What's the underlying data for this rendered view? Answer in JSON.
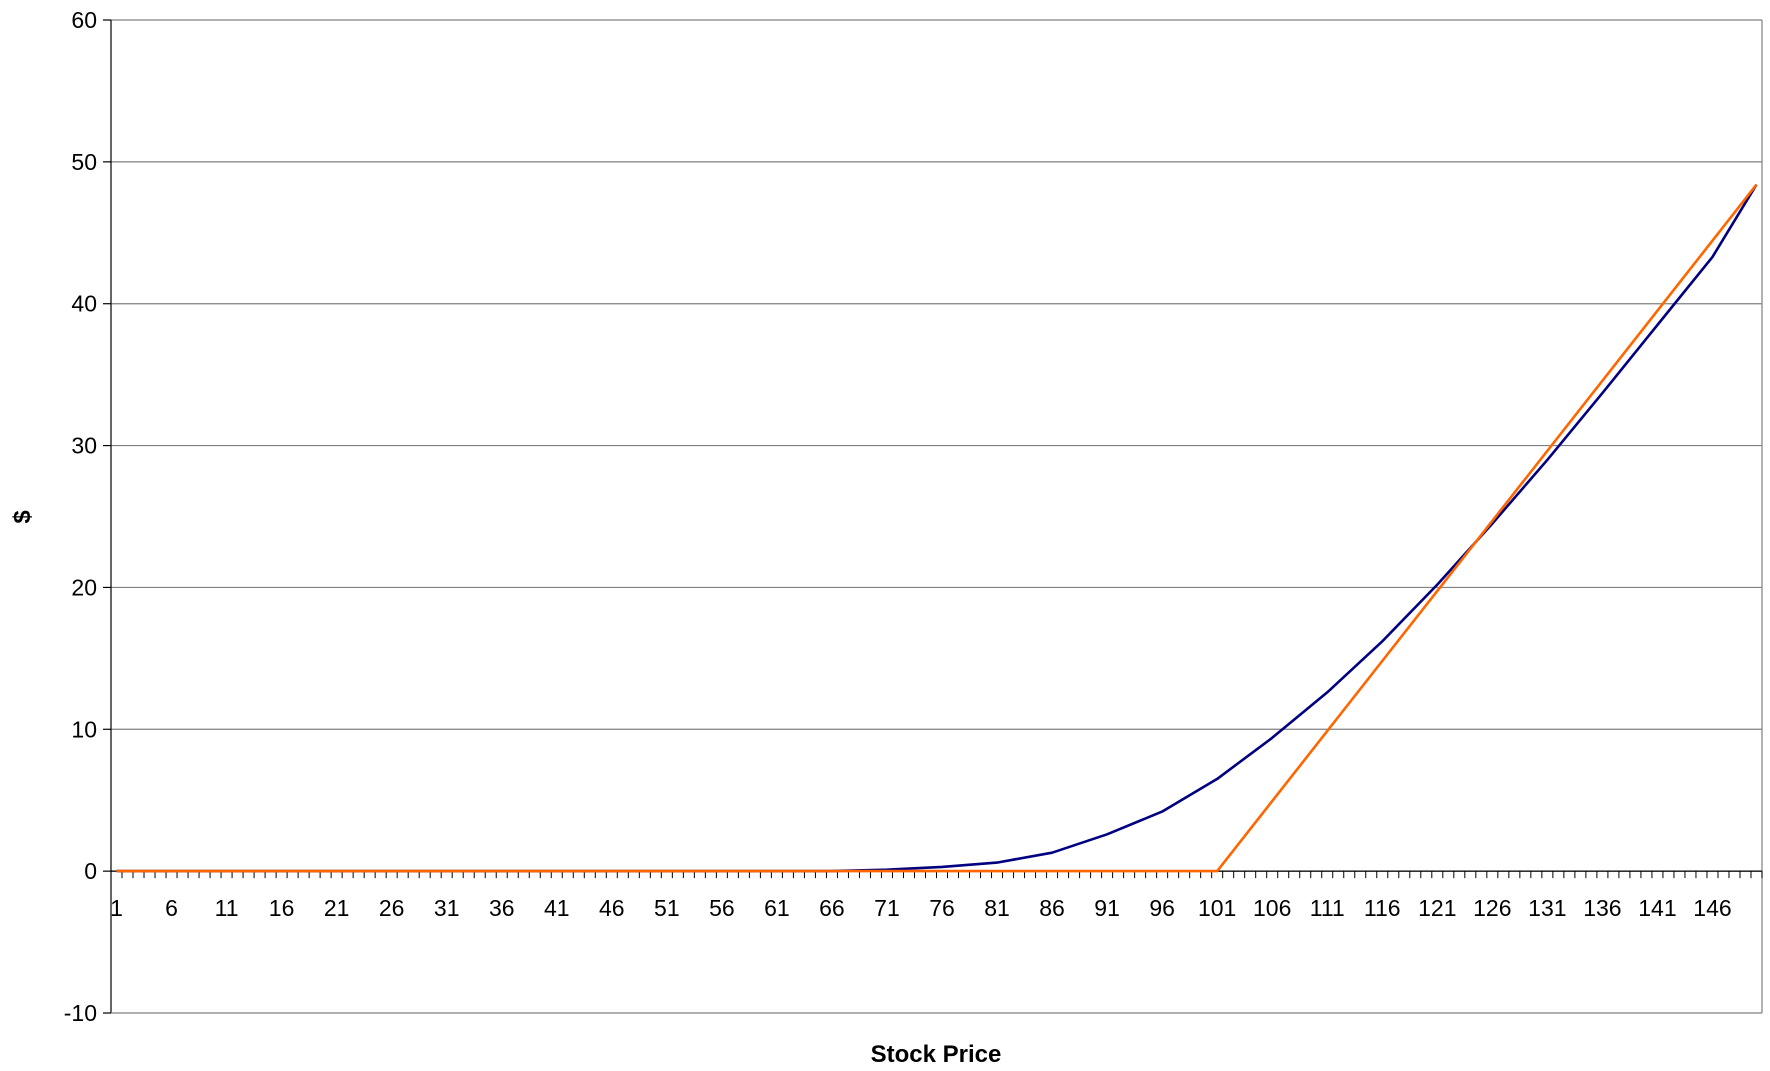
{
  "chart_data": {
    "type": "line",
    "title": "",
    "xlabel": "Stock Price",
    "ylabel": "$",
    "ylim": [
      -10,
      60
    ],
    "yticks": [
      -10,
      0,
      10,
      20,
      30,
      40,
      50,
      60
    ],
    "x_category_count": 150,
    "x_tick_labels": [
      1,
      6,
      11,
      16,
      21,
      26,
      31,
      36,
      41,
      46,
      51,
      56,
      61,
      66,
      71,
      76,
      81,
      86,
      91,
      96,
      101,
      106,
      111,
      116,
      121,
      126,
      131,
      136,
      141,
      146
    ],
    "grid": "horizontal",
    "legend": "none",
    "series": [
      {
        "color": "#000080",
        "x": [
          1,
          66,
          71,
          76,
          81,
          86,
          91,
          96,
          101,
          106,
          111,
          116,
          121,
          126,
          131,
          136,
          141,
          146,
          150
        ],
        "values": [
          0,
          0,
          0.1,
          0.3,
          0.6,
          1.3,
          2.6,
          4.2,
          6.5,
          9.4,
          12.6,
          16.2,
          20.2,
          24.5,
          29.0,
          33.7,
          38.5,
          43.3,
          48.4
        ]
      },
      {
        "color": "#FF6600",
        "x": [
          1,
          101,
          150
        ],
        "values": [
          0,
          0,
          48.4
        ]
      }
    ]
  }
}
